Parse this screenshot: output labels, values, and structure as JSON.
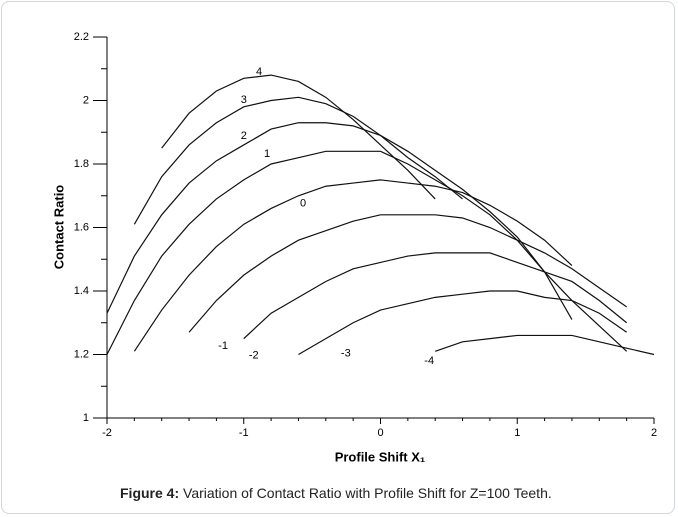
{
  "chart_data": {
    "type": "line",
    "x_label": "Profile Shift X₁",
    "y_label": "Contact Ratio",
    "xlim": [
      -2,
      2
    ],
    "ylim": [
      1,
      2.2
    ],
    "xticks": [
      -2,
      -1,
      0,
      1,
      2
    ],
    "yticks": [
      1,
      1.2,
      1.4,
      1.6,
      1.8,
      2,
      2.2
    ],
    "color": "#111111",
    "series": [
      {
        "name": "4",
        "x": [
          -1.6,
          -1.4,
          -1.2,
          -1.0,
          -0.8,
          -0.6,
          -0.4,
          -0.2,
          0,
          0.2,
          0.4
        ],
        "values": [
          1.85,
          1.96,
          2.03,
          2.07,
          2.08,
          2.06,
          2.01,
          1.94,
          1.86,
          1.78,
          1.69
        ]
      },
      {
        "name": "3",
        "x": [
          -1.8,
          -1.6,
          -1.4,
          -1.2,
          -1.0,
          -0.8,
          -0.6,
          -0.4,
          -0.2,
          0,
          0.2,
          0.4,
          0.6
        ],
        "values": [
          1.61,
          1.76,
          1.86,
          1.93,
          1.98,
          2.0,
          2.01,
          1.99,
          1.95,
          1.89,
          1.82,
          1.76,
          1.69
        ]
      },
      {
        "name": "2",
        "x": [
          -2,
          -1.8,
          -1.6,
          -1.4,
          -1.2,
          -1.0,
          -0.8,
          -0.6,
          -0.4,
          -0.2,
          0,
          0.2,
          0.4,
          0.6,
          0.8,
          1.0,
          1.2,
          1.4
        ],
        "values": [
          1.33,
          1.51,
          1.64,
          1.74,
          1.81,
          1.86,
          1.91,
          1.93,
          1.93,
          1.92,
          1.89,
          1.84,
          1.78,
          1.72,
          1.65,
          1.57,
          1.46,
          1.31
        ]
      },
      {
        "name": "1",
        "x": [
          -2,
          -1.8,
          -1.6,
          -1.4,
          -1.2,
          -1.0,
          -0.8,
          -0.6,
          -0.4,
          -0.2,
          0,
          0.2,
          0.4,
          0.6,
          0.8,
          1.0,
          1.2,
          1.4,
          1.6,
          1.8
        ],
        "values": [
          1.2,
          1.37,
          1.51,
          1.61,
          1.69,
          1.75,
          1.8,
          1.82,
          1.84,
          1.84,
          1.84,
          1.8,
          1.75,
          1.7,
          1.64,
          1.56,
          1.46,
          1.37,
          1.29,
          1.21
        ]
      },
      {
        "name": "0",
        "x": [
          -1.8,
          -1.6,
          -1.4,
          -1.2,
          -1.0,
          -0.8,
          -0.6,
          -0.4,
          -0.2,
          0,
          0.2,
          0.4,
          0.6,
          0.8,
          1.0,
          1.2,
          1.4
        ],
        "values": [
          1.21,
          1.34,
          1.45,
          1.54,
          1.61,
          1.66,
          1.7,
          1.73,
          1.74,
          1.75,
          1.74,
          1.73,
          1.71,
          1.67,
          1.62,
          1.56,
          1.48
        ]
      },
      {
        "name": "-1",
        "x": [
          -1.4,
          -1.2,
          -1.0,
          -0.8,
          -0.6,
          -0.4,
          -0.2,
          0,
          0.2,
          0.4,
          0.6,
          0.8,
          1.0,
          1.2,
          1.4,
          1.6,
          1.8
        ],
        "values": [
          1.27,
          1.37,
          1.45,
          1.51,
          1.56,
          1.59,
          1.62,
          1.64,
          1.64,
          1.64,
          1.63,
          1.6,
          1.56,
          1.52,
          1.47,
          1.41,
          1.35
        ]
      },
      {
        "name": "-2",
        "x": [
          -1.0,
          -0.8,
          -0.6,
          -0.4,
          -0.2,
          0,
          0.2,
          0.4,
          0.6,
          0.8,
          1.0,
          1.2,
          1.4,
          1.6,
          1.8
        ],
        "values": [
          1.25,
          1.33,
          1.38,
          1.43,
          1.47,
          1.49,
          1.51,
          1.52,
          1.52,
          1.52,
          1.49,
          1.46,
          1.43,
          1.37,
          1.3
        ]
      },
      {
        "name": "-3",
        "x": [
          -0.6,
          -0.4,
          -0.2,
          0,
          0.2,
          0.4,
          0.6,
          0.8,
          1.0,
          1.2,
          1.4,
          1.6,
          1.8
        ],
        "values": [
          1.2,
          1.25,
          1.3,
          1.34,
          1.36,
          1.38,
          1.39,
          1.4,
          1.4,
          1.38,
          1.37,
          1.33,
          1.27
        ]
      },
      {
        "name": "-4",
        "x": [
          0.4,
          0.6,
          0.8,
          1.0,
          1.2,
          1.4,
          1.6,
          1.8,
          2.0
        ],
        "values": [
          1.21,
          1.24,
          1.25,
          1.26,
          1.26,
          1.26,
          1.24,
          1.22,
          1.2
        ]
      }
    ]
  },
  "figure": {
    "label": "Figure 4:",
    "text": " Variation of Contact Ratio with Profile Shift for Z=100 Teeth."
  }
}
